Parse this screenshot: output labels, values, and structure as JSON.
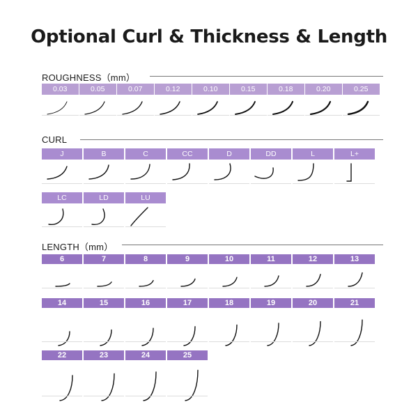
{
  "title": "Optional Curl & Thickness & Length",
  "sections": {
    "roughness": {
      "label": "ROUGHNESS（mm）",
      "items": [
        "0.03",
        "0.05",
        "0.07",
        "0.12",
        "0.10",
        "0.15",
        "0.18",
        "0.20",
        "0.25"
      ]
    },
    "curl": {
      "label": "CURL",
      "row1": [
        "J",
        "B",
        "C",
        "CC",
        "D",
        "DD",
        "L",
        "L+"
      ],
      "row2": [
        "LC",
        "LD",
        "LU"
      ]
    },
    "length": {
      "label": "LENGTH（mm）",
      "row1": [
        "6",
        "7",
        "8",
        "9",
        "10",
        "11",
        "12",
        "13"
      ],
      "row2": [
        "14",
        "15",
        "16",
        "17",
        "18",
        "19",
        "20",
        "21"
      ],
      "row3": [
        "22",
        "23",
        "24",
        "25"
      ]
    }
  },
  "colors": {
    "badge_light": "#b89fd3",
    "badge_mid": "#a98cd0",
    "badge_dark": "#9574c2",
    "lash": "#111111"
  }
}
